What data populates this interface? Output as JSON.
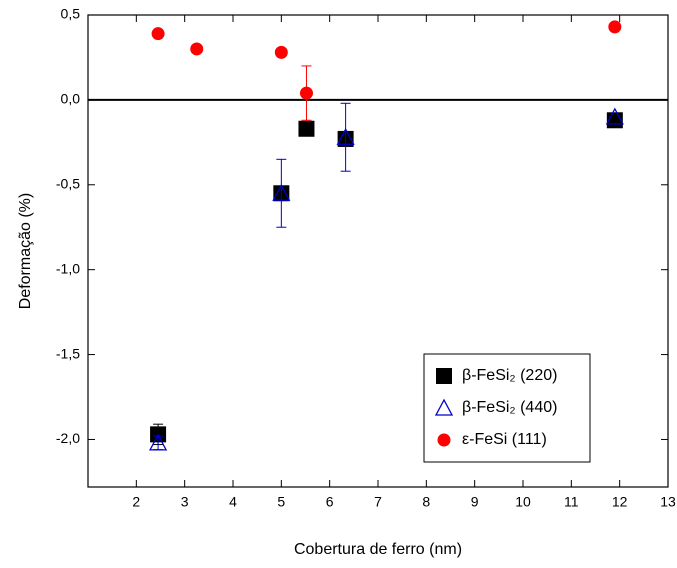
{
  "chart_data": {
    "type": "scatter",
    "x_label": "Cobertura de ferro (nm)",
    "y_label": "Deformação (%)",
    "xlim": [
      1,
      13
    ],
    "xticks": [
      2,
      3,
      4,
      5,
      6,
      7,
      8,
      9,
      10,
      11,
      12,
      13
    ],
    "ylim": [
      -2.28,
      0.5
    ],
    "yticks": [
      {
        "value": 0.5,
        "label": "0,5"
      },
      {
        "value": 0,
        "label": "0,0"
      },
      {
        "value": -0.5,
        "label": "-0,5"
      },
      {
        "value": -1,
        "label": "-1,0"
      },
      {
        "value": -1.5,
        "label": "-1,5"
      },
      {
        "value": -2,
        "label": "-2,0"
      }
    ],
    "reference_line": 0,
    "legend": "lower right",
    "series": [
      {
        "name": "β-FeSi₂ (220)",
        "color": "#000000",
        "marker": "square",
        "x": [
          2.45,
          5.0,
          5.52,
          6.33,
          11.9
        ],
        "values": [
          -1.97,
          -0.55,
          -0.17,
          -0.23,
          -0.12
        ],
        "errors": [
          0.06,
          null,
          null,
          null,
          0.03
        ]
      },
      {
        "name": "β-FeSi₂ (440)",
        "color": "#0000cc",
        "marker": "triangle",
        "x": [
          2.45,
          5.0,
          6.33,
          11.9
        ],
        "values": [
          -2.02,
          -0.55,
          -0.22,
          -0.1
        ],
        "errors": [
          0.04,
          0.2,
          0.2,
          null
        ]
      },
      {
        "name": "ε-FeSi (111)",
        "color": "#ff0000",
        "marker": "circle",
        "x": [
          2.45,
          3.25,
          5.0,
          5.52,
          11.9
        ],
        "values": [
          0.39,
          0.3,
          0.28,
          0.04,
          0.43
        ],
        "errors": [
          null,
          null,
          null,
          0.16,
          null
        ]
      }
    ]
  }
}
